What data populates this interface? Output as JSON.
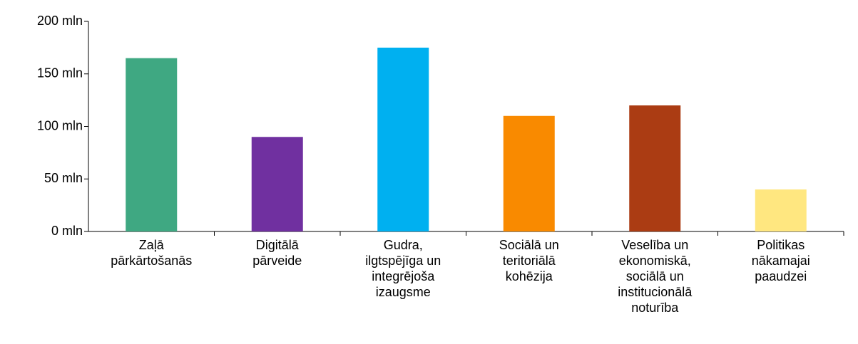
{
  "chart_data": {
    "type": "bar",
    "categories": [
      "Zaļā pārkārtošanās",
      "Digitālā pārveide",
      "Gudra, ilgtspējīga un integrējoša izaugsme",
      "Sociālā un teritoriālā kohēzija",
      "Veselība un ekonomiskā, sociālā un institucionālā noturība",
      "Politikas nākamajai paaudzei"
    ],
    "values": [
      165,
      90,
      175,
      110,
      120,
      40
    ],
    "colors": [
      "#3fa882",
      "#7030a0",
      "#00b0f0",
      "#f98a00",
      "#ab3c13",
      "#ffe780"
    ],
    "ylim": [
      0,
      200
    ],
    "yticks": [
      {
        "value": 0,
        "label": "0 mln"
      },
      {
        "value": 50,
        "label": "50 mln"
      },
      {
        "value": 100,
        "label": "100 mln"
      },
      {
        "value": 150,
        "label": "150 mln"
      },
      {
        "value": 200,
        "label": "200 mln"
      }
    ],
    "grid": false
  }
}
